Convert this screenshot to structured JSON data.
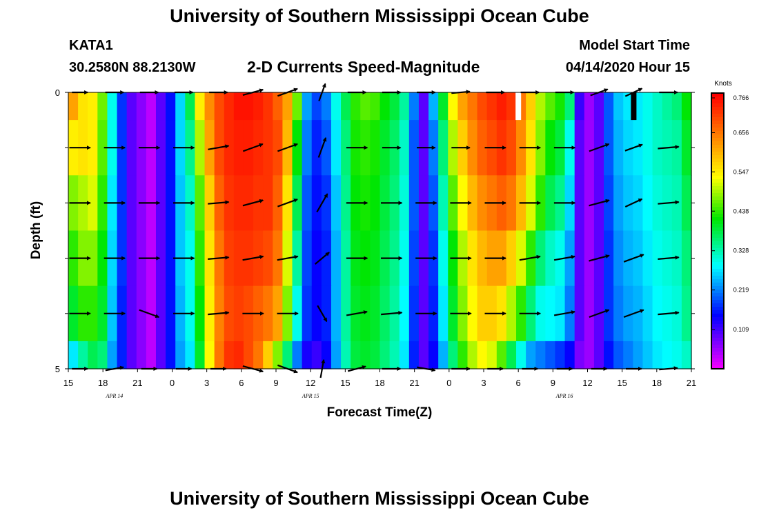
{
  "header": {
    "title": "University of Southern Mississippi Ocean Cube",
    "station": "KATA1",
    "coordinates": "30.2580N 88.2130W",
    "subtitle": "2-D Currents Speed-Magnitude",
    "model_start_label": "Model Start Time",
    "model_start_value": "04/14/2020 Hour 15"
  },
  "footer": {
    "title": "University of Southern Mississippi Ocean Cube"
  },
  "chart_data": {
    "type": "heatmap",
    "title": "2-D Currents Speed-Magnitude",
    "xlabel": "Forecast Time(Z)",
    "ylabel": "Depth (ft)",
    "x_tick_labels": [
      "15",
      "18",
      "21",
      "0",
      "3",
      "6",
      "9",
      "12",
      "15",
      "18",
      "21",
      "0",
      "3",
      "6",
      "9",
      "12",
      "15",
      "18",
      "21"
    ],
    "date_labels": [
      {
        "label": "APR 14",
        "hours_from_start": 4
      },
      {
        "label": "APR 15",
        "hours_from_start": 21
      },
      {
        "label": "APR 16",
        "hours_from_start": 43
      }
    ],
    "x_range_hours": [
      0,
      54
    ],
    "y_range_ft": [
      0,
      5
    ],
    "y_tick_labels": [
      "0",
      "",
      "",
      "",
      "",
      "5"
    ],
    "colorbar": {
      "unit": "Knots",
      "range": [
        0,
        0.766
      ],
      "tick_values": [
        0.766,
        0.656,
        0.547,
        0.438,
        0.328,
        0.219,
        0.109
      ],
      "tick_labels": [
        "0.766",
        "0.656",
        "0.547",
        "0.438",
        "0.328",
        "0.219",
        "0.109"
      ]
    },
    "depth_bins_ft": [
      0.25,
      1.0,
      2.0,
      3.0,
      4.0,
      4.75
    ],
    "speed_knots": [
      [
        0.62,
        0.56,
        0.55,
        0.47,
        0.3,
        0.18,
        0.1,
        0.07,
        0.04,
        0.1,
        0.16,
        0.27,
        0.38,
        0.55,
        0.64,
        0.7,
        0.73,
        0.75,
        0.75,
        0.74,
        0.72,
        0.68,
        0.62,
        0.47,
        0.24,
        0.19,
        0.22,
        0.3,
        0.38,
        0.44,
        0.46,
        0.45,
        0.42,
        0.39,
        0.34,
        0.22,
        0.1,
        0.25,
        0.4,
        0.54,
        0.62,
        0.66,
        0.7,
        0.72,
        0.74,
        0.72,
        0.66,
        0.58,
        0.5,
        0.46,
        0.43,
        0.36,
        0.12,
        0.06,
        0.1,
        0.2,
        0.26,
        0.28,
        0.28,
        0.3,
        0.32,
        0.34,
        0.36,
        0.42
      ],
      [
        0.55,
        0.56,
        0.55,
        0.46,
        0.3,
        0.18,
        0.1,
        0.07,
        0.04,
        0.1,
        0.16,
        0.27,
        0.35,
        0.5,
        0.62,
        0.7,
        0.73,
        0.74,
        0.74,
        0.73,
        0.72,
        0.7,
        0.6,
        0.42,
        0.22,
        0.17,
        0.2,
        0.28,
        0.36,
        0.43,
        0.44,
        0.43,
        0.4,
        0.37,
        0.32,
        0.2,
        0.1,
        0.22,
        0.36,
        0.5,
        0.58,
        0.64,
        0.68,
        0.7,
        0.72,
        0.7,
        0.64,
        0.56,
        0.48,
        0.42,
        0.39,
        0.3,
        0.1,
        0.06,
        0.1,
        0.2,
        0.25,
        0.27,
        0.28,
        0.3,
        0.32,
        0.33,
        0.34,
        0.4
      ],
      [
        0.48,
        0.5,
        0.52,
        0.44,
        0.28,
        0.18,
        0.1,
        0.07,
        0.04,
        0.1,
        0.16,
        0.26,
        0.32,
        0.46,
        0.58,
        0.68,
        0.72,
        0.73,
        0.73,
        0.72,
        0.72,
        0.68,
        0.56,
        0.38,
        0.2,
        0.16,
        0.18,
        0.26,
        0.35,
        0.42,
        0.43,
        0.42,
        0.39,
        0.36,
        0.31,
        0.2,
        0.1,
        0.2,
        0.33,
        0.46,
        0.54,
        0.6,
        0.64,
        0.66,
        0.68,
        0.66,
        0.6,
        0.52,
        0.44,
        0.38,
        0.35,
        0.27,
        0.1,
        0.06,
        0.1,
        0.19,
        0.24,
        0.26,
        0.27,
        0.29,
        0.31,
        0.32,
        0.33,
        0.38
      ],
      [
        0.44,
        0.48,
        0.48,
        0.42,
        0.27,
        0.18,
        0.1,
        0.07,
        0.04,
        0.1,
        0.16,
        0.26,
        0.3,
        0.44,
        0.56,
        0.66,
        0.71,
        0.72,
        0.72,
        0.71,
        0.7,
        0.66,
        0.52,
        0.34,
        0.19,
        0.15,
        0.17,
        0.25,
        0.34,
        0.41,
        0.42,
        0.41,
        0.38,
        0.35,
        0.3,
        0.19,
        0.1,
        0.18,
        0.3,
        0.42,
        0.5,
        0.56,
        0.6,
        0.62,
        0.62,
        0.58,
        0.52,
        0.44,
        0.36,
        0.32,
        0.3,
        0.24,
        0.1,
        0.06,
        0.1,
        0.18,
        0.23,
        0.25,
        0.26,
        0.28,
        0.3,
        0.31,
        0.32,
        0.36
      ],
      [
        0.4,
        0.44,
        0.44,
        0.4,
        0.26,
        0.17,
        0.1,
        0.07,
        0.04,
        0.1,
        0.16,
        0.25,
        0.3,
        0.42,
        0.55,
        0.65,
        0.7,
        0.71,
        0.7,
        0.68,
        0.66,
        0.62,
        0.48,
        0.3,
        0.18,
        0.15,
        0.17,
        0.25,
        0.34,
        0.4,
        0.41,
        0.4,
        0.37,
        0.34,
        0.29,
        0.18,
        0.1,
        0.17,
        0.28,
        0.4,
        0.48,
        0.54,
        0.58,
        0.58,
        0.56,
        0.5,
        0.44,
        0.36,
        0.3,
        0.29,
        0.28,
        0.22,
        0.1,
        0.06,
        0.1,
        0.18,
        0.22,
        0.24,
        0.25,
        0.27,
        0.29,
        0.3,
        0.31,
        0.35
      ],
      [
        0.28,
        0.34,
        0.38,
        0.36,
        0.24,
        0.17,
        0.1,
        0.07,
        0.04,
        0.1,
        0.16,
        0.24,
        0.28,
        0.4,
        0.54,
        0.66,
        0.72,
        0.73,
        0.7,
        0.66,
        0.58,
        0.48,
        0.36,
        0.22,
        0.14,
        0.12,
        0.15,
        0.24,
        0.33,
        0.39,
        0.4,
        0.39,
        0.36,
        0.33,
        0.28,
        0.17,
        0.1,
        0.15,
        0.25,
        0.36,
        0.44,
        0.5,
        0.54,
        0.52,
        0.46,
        0.38,
        0.3,
        0.24,
        0.22,
        0.2,
        0.18,
        0.15,
        0.08,
        0.06,
        0.1,
        0.16,
        0.2,
        0.22,
        0.24,
        0.26,
        0.28,
        0.29,
        0.3,
        0.32
      ]
    ],
    "missing_markers": [
      {
        "hours_from_start": 39.0,
        "depth_range_ft": [
          0,
          0.5
        ],
        "color": "#ffffff"
      },
      {
        "hours_from_start": 49.0,
        "depth_range_ft": [
          0,
          0.5
        ],
        "color": "#000000"
      }
    ],
    "arrow_hours": [
      1,
      4,
      7,
      10,
      13,
      16,
      19,
      22,
      25,
      28,
      31,
      34,
      37,
      40,
      43,
      46,
      49,
      52
    ],
    "arrow_depths_ft": [
      0,
      1,
      2,
      3,
      4,
      5
    ],
    "arrow_directions_deg": [
      [
        0,
        0,
        0,
        0,
        0,
        15,
        20,
        70,
        0,
        0,
        0,
        5,
        0,
        0,
        0,
        20,
        25,
        0
      ],
      [
        0,
        0,
        0,
        0,
        10,
        20,
        20,
        70,
        0,
        0,
        0,
        0,
        0,
        0,
        0,
        20,
        20,
        5
      ],
      [
        0,
        0,
        0,
        0,
        5,
        15,
        20,
        60,
        0,
        0,
        0,
        0,
        0,
        0,
        0,
        15,
        25,
        5
      ],
      [
        0,
        0,
        0,
        0,
        5,
        10,
        10,
        40,
        0,
        0,
        0,
        0,
        0,
        10,
        10,
        15,
        20,
        5
      ],
      [
        0,
        0,
        -20,
        0,
        5,
        0,
        0,
        -60,
        10,
        5,
        0,
        0,
        0,
        0,
        10,
        20,
        20,
        5
      ],
      [
        0,
        10,
        0,
        0,
        0,
        -15,
        -20,
        80,
        15,
        0,
        -10,
        0,
        0,
        0,
        0,
        0,
        0,
        5
      ]
    ],
    "arrow_magnitudes": [
      [
        0.6,
        0.7,
        0.7,
        0.7,
        0.7,
        0.8,
        0.8,
        0.7,
        0.7,
        0.7,
        0.7,
        0.7,
        0.7,
        0.7,
        0.7,
        0.7,
        0.7,
        0.7
      ],
      [
        0.8,
        0.8,
        0.8,
        0.8,
        0.8,
        0.8,
        0.8,
        0.8,
        0.8,
        0.7,
        0.7,
        0.7,
        0.8,
        0.8,
        0.8,
        0.8,
        0.7,
        0.8
      ],
      [
        0.8,
        0.8,
        0.8,
        0.8,
        0.8,
        0.8,
        0.8,
        0.8,
        0.8,
        0.8,
        0.8,
        0.8,
        0.8,
        0.8,
        0.8,
        0.8,
        0.7,
        0.8
      ],
      [
        0.8,
        0.8,
        0.8,
        0.8,
        0.8,
        0.8,
        0.8,
        0.7,
        0.8,
        0.8,
        0.8,
        0.8,
        0.8,
        0.8,
        0.8,
        0.8,
        0.8,
        0.8
      ],
      [
        0.8,
        0.8,
        0.8,
        0.8,
        0.8,
        0.8,
        0.8,
        0.7,
        0.8,
        0.8,
        0.8,
        0.8,
        0.8,
        0.8,
        0.8,
        0.8,
        0.8,
        0.8
      ],
      [
        0.6,
        0.7,
        0.6,
        0.6,
        0.6,
        0.8,
        0.8,
        0.7,
        0.7,
        0.7,
        0.7,
        0.7,
        0.6,
        0.6,
        0.6,
        0.6,
        0.6,
        0.7
      ]
    ]
  }
}
